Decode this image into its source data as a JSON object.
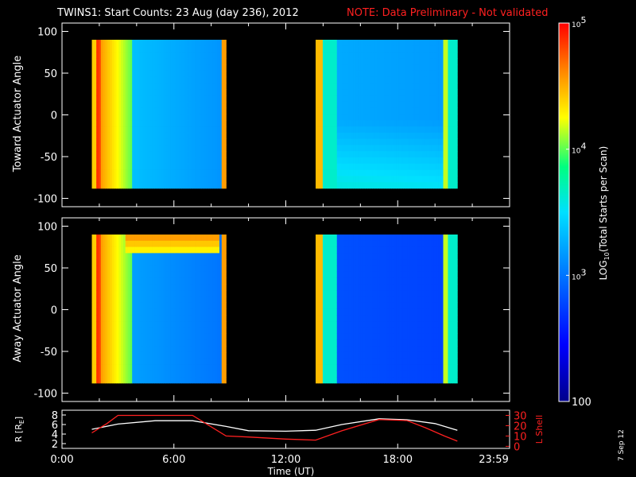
{
  "header": {
    "title": "TWINS1: Start Counts: 23 Aug (day 236), 2012",
    "note": "NOTE: Data Preliminary - Not validated"
  },
  "footer": {
    "date_stamp": "7 Sep 12"
  },
  "colors": {
    "background": "#000000",
    "axes": "#ffffff",
    "note": "#ff2020",
    "r_line": "#ffffff",
    "l_line": "#ff2020"
  },
  "chart_data": [
    {
      "type": "heatmap",
      "name": "toward-panel",
      "ylabel": "Toward Actuator Angle",
      "ylim": [
        -110,
        110
      ],
      "yticks": [
        100,
        50,
        0,
        -50,
        -100
      ],
      "xlim": [
        0,
        24
      ],
      "data_blocks": [
        {
          "t_start": 1.6,
          "t_end": 8.8,
          "angle_min": -88,
          "angle_max": 90
        },
        {
          "t_start": 13.6,
          "t_end": 21.2,
          "angle_min": -88,
          "angle_max": 90
        }
      ]
    },
    {
      "type": "heatmap",
      "name": "away-panel",
      "ylabel": "Away Actuator Angle",
      "ylim": [
        -110,
        110
      ],
      "yticks": [
        100,
        50,
        0,
        -50,
        -100
      ],
      "xlim": [
        0,
        24
      ],
      "data_blocks": [
        {
          "t_start": 1.6,
          "t_end": 8.8,
          "angle_min": -88,
          "angle_max": 90
        },
        {
          "t_start": 13.6,
          "t_end": 21.2,
          "angle_min": -88,
          "angle_max": 90
        }
      ]
    },
    {
      "type": "line",
      "name": "orbit-panel",
      "xlabel": "Time (UT)",
      "xticks": [
        "0:00",
        "6:00",
        "12:00",
        "18:00",
        "23:59"
      ],
      "xlim": [
        0,
        24
      ],
      "ylabel_left": "R [R",
      "ylabel_left_sub": "E",
      "ylabel_left_close": "]",
      "yticks_left": [
        "8",
        "6",
        "4",
        "2"
      ],
      "ylim_left": [
        1,
        9
      ],
      "ylabel_right": "L Shell",
      "yticks_right": [
        "30",
        "20",
        "10",
        "0"
      ],
      "ylim_right": [
        -2,
        35
      ],
      "series": [
        {
          "name": "R",
          "x": [
            1.6,
            3,
            5,
            7,
            8.8,
            10,
            12,
            13.6,
            15,
            17,
            18.5,
            20,
            21.2
          ],
          "y": [
            5.0,
            6.1,
            6.8,
            6.8,
            5.6,
            4.7,
            4.6,
            4.8,
            6.0,
            7.2,
            7.0,
            6.2,
            4.8
          ]
        },
        {
          "name": "L Shell",
          "x": [
            1.6,
            2.4,
            3.0,
            7.0,
            8.8,
            10,
            12,
            13.6,
            15,
            17,
            18.5,
            19.5,
            20.5,
            21.2
          ],
          "y": [
            13,
            22,
            30,
            30,
            10,
            9,
            7,
            6,
            15,
            26,
            25,
            18,
            10,
            5
          ]
        }
      ]
    },
    {
      "type": "heatmap",
      "name": "colorbar",
      "ylabel": "LOG10(Total Starts per Scan)",
      "ylabel_main": "LOG",
      "ylabel_sub": "10",
      "ylabel_rest": "(Total Starts per Scan)",
      "scale": "log",
      "range": [
        100,
        100000
      ],
      "tick_labels": [
        {
          "value": 100000,
          "base": "10",
          "exp": "5"
        },
        {
          "value": 10000,
          "base": "10",
          "exp": "4"
        },
        {
          "value": 1000,
          "base": "10",
          "exp": "3"
        },
        {
          "value": 100,
          "base": "100",
          "exp": ""
        }
      ]
    }
  ]
}
